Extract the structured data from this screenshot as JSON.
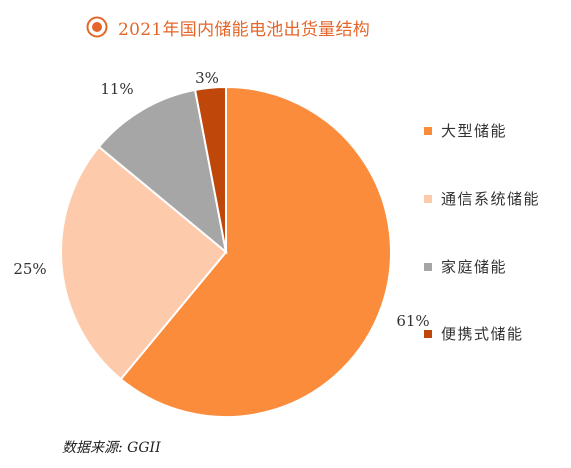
{
  "title": "2021年国内储能电池出货量结构",
  "source": "数据来源: GGII",
  "colors": {
    "title": "#e4662a",
    "icon": "#e4662a"
  },
  "chart_data": {
    "type": "pie",
    "title": "2021年国内储能电池出货量结构",
    "legend_position": "right",
    "slices": [
      {
        "name": "大型储能",
        "value": 61,
        "label": "61%",
        "color": "#fb8c3c"
      },
      {
        "name": "通信系统储能",
        "value": 25,
        "label": "25%",
        "color": "#fdcbac"
      },
      {
        "name": "家庭储能",
        "value": 11,
        "label": "11%",
        "color": "#a6a6a6"
      },
      {
        "name": "便携式储能",
        "value": 3,
        "label": "3%",
        "color": "#c0470a"
      }
    ]
  }
}
